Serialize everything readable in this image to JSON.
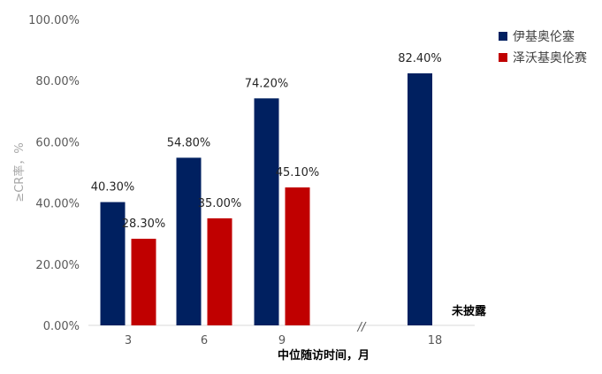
{
  "chart_data": {
    "type": "bar",
    "categories": [
      "3",
      "6",
      "9",
      "18"
    ],
    "series": [
      {
        "name": "伊基奥伦塞",
        "color": "#002060",
        "values": [
          40.3,
          54.8,
          74.2,
          82.4
        ],
        "labels": [
          "40.30%",
          "54.80%",
          "74.20%",
          "82.40%"
        ]
      },
      {
        "name": "泽沃基奥伦赛",
        "color": "#c00000",
        "values": [
          28.3,
          35.0,
          45.1,
          null
        ],
        "labels": [
          "28.30%",
          "35.00%",
          "45.10%",
          ""
        ]
      }
    ],
    "xlabel": "中位随访时间，月",
    "ylabel": "≥CR率，%",
    "ylim": [
      0,
      100
    ],
    "yticks": [
      "0.00%",
      "20.00%",
      "40.00%",
      "60.00%",
      "80.00%",
      "100.00%"
    ],
    "axis_break_mark": "//",
    "not_disclosed_label": "未披露",
    "legend_position": "top-right",
    "grid": false
  }
}
